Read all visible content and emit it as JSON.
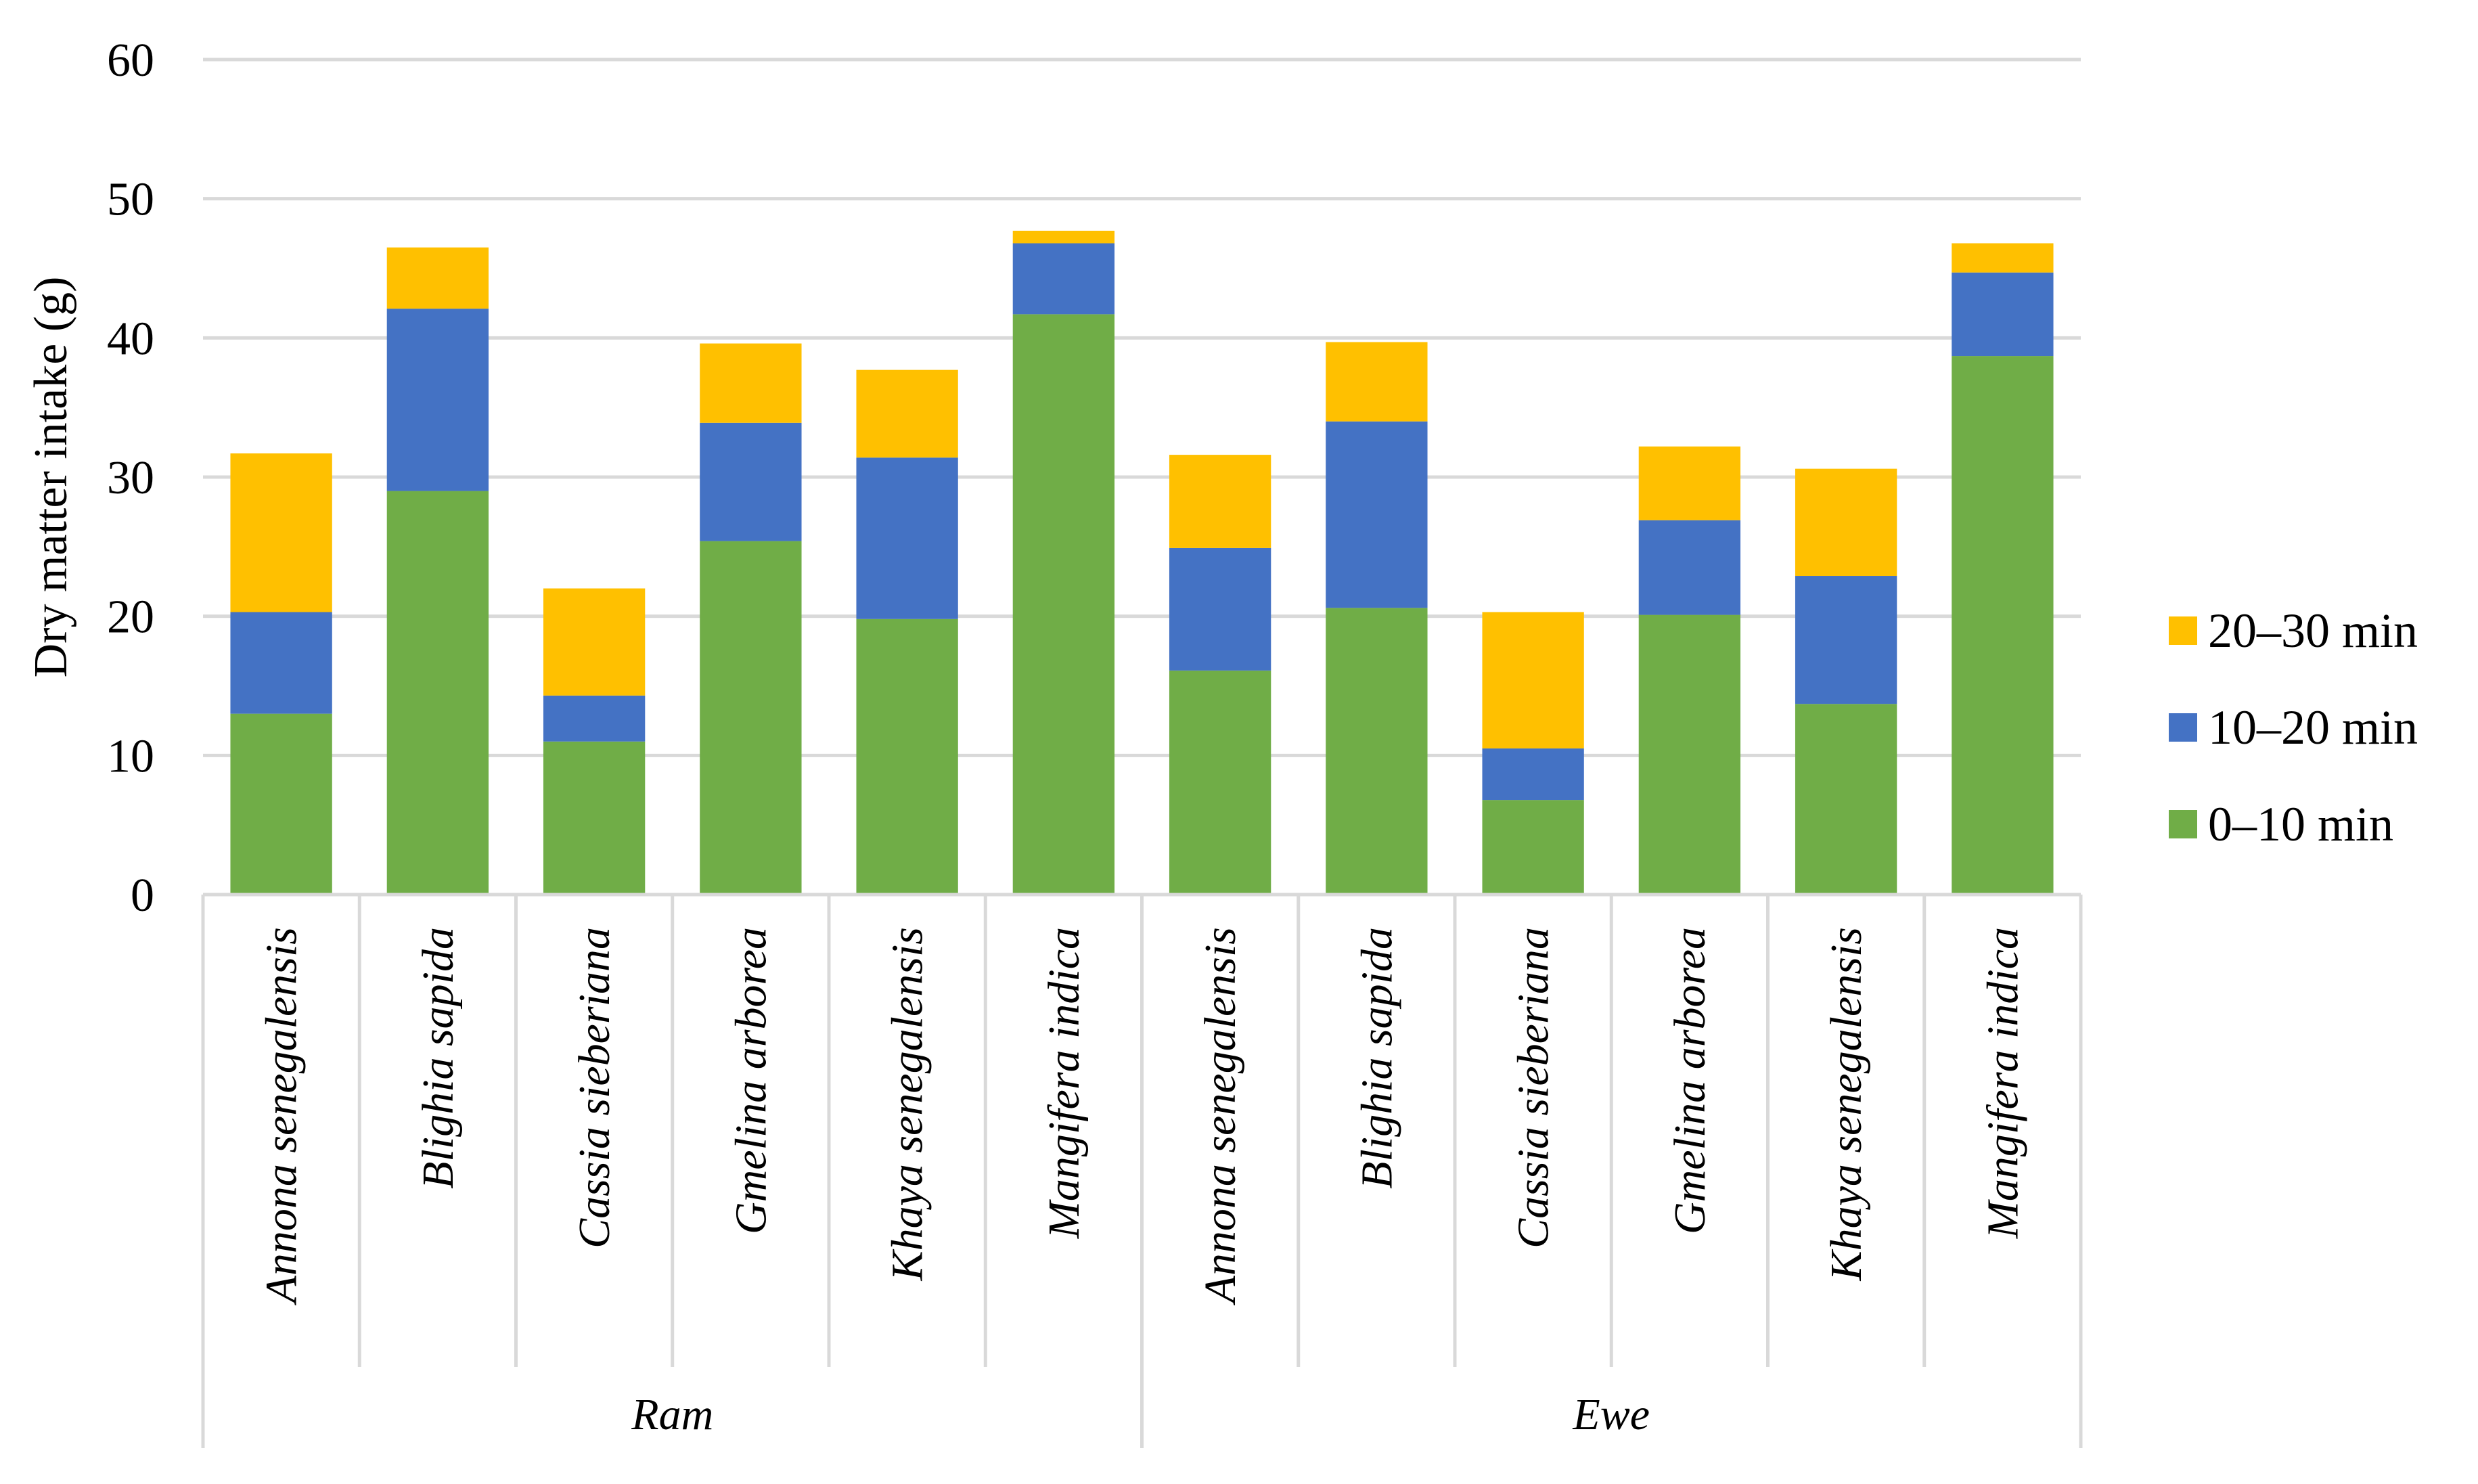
{
  "chart_data": {
    "type": "bar",
    "stacked": true,
    "title": "",
    "xlabel": "",
    "ylabel": "Dry matter intake (g)",
    "ylim": [
      0,
      60
    ],
    "yticks": [
      0,
      10,
      20,
      30,
      40,
      50,
      60
    ],
    "grid": true,
    "legend_position": "right",
    "categories": [
      "Annona senegalensis",
      "Blighia sapida",
      "Cassia sieberiana",
      "Gmelina arborea",
      "Khaya senegalensis",
      "Mangifera indica",
      "Annona senegalensis",
      "Blighia sapida",
      "Cassia sieberiana",
      "Gmelina arborea",
      "Khaya senegalensis",
      "Mangifera indica"
    ],
    "groups": [
      {
        "label": "Ram",
        "start": 0,
        "count": 6
      },
      {
        "label": "Ewe",
        "start": 6,
        "count": 6
      }
    ],
    "series": [
      {
        "name": "0–10 min",
        "color": "#70AD47",
        "values": [
          13.0,
          29.0,
          11.0,
          25.4,
          19.8,
          41.7,
          16.1,
          20.6,
          6.8,
          20.1,
          13.7,
          38.7
        ]
      },
      {
        "name": "10–20 min",
        "color": "#4472C4",
        "values": [
          7.3,
          13.1,
          3.3,
          8.5,
          11.6,
          5.1,
          8.8,
          13.4,
          3.7,
          6.8,
          9.2,
          6.0
        ]
      },
      {
        "name": "20–30 min",
        "color": "#FFC000",
        "values": [
          11.4,
          4.4,
          7.7,
          5.7,
          6.3,
          0.9,
          6.7,
          5.7,
          9.8,
          5.3,
          7.7,
          2.1
        ]
      }
    ],
    "legend_order": [
      "20–30 min",
      "10–20 min",
      "0–10 min"
    ]
  }
}
